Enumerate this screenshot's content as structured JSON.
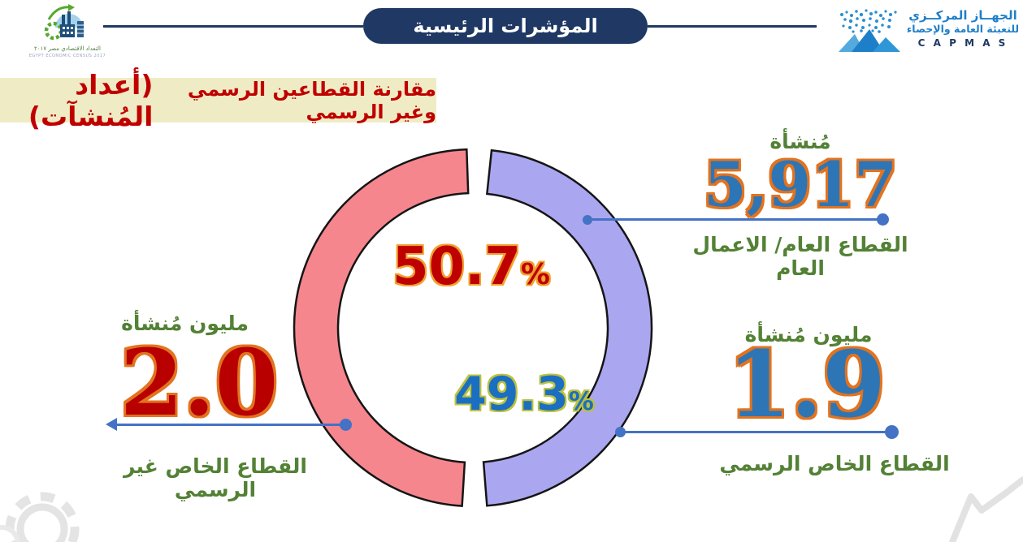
{
  "header": {
    "banner": {
      "title": "المؤشرات الرئيسية"
    },
    "capmas_logo": {
      "name_line1": "الجهــاز المركــزي",
      "name_line2": "للتعبئة العامة والإحصاء",
      "acronym": "C A P M A S"
    },
    "census_logo": {
      "caption_ar": "التعداد الاقتصادي مصر ٢٠١٧",
      "caption_en": "EGYPT ECONOMIC CENSUS 2017"
    }
  },
  "page_title": {
    "main": "مقارنة القطاعين الرسمي وغير الرسمي",
    "highlight": "(أعداد المُنشآت)"
  },
  "center": {
    "percent_symbol": "%"
  },
  "callouts": {
    "public": {
      "unit": "مُنشأة",
      "value": "5,917",
      "label": "القطاع العام/ الاعمال العام"
    },
    "formal": {
      "unit": "مليون مُنشأة",
      "value": "1.9",
      "label": "القطاع الخاص الرسمي"
    },
    "informal": {
      "unit": "مليون مُنشأة",
      "value": "2.0",
      "label": "القطاع الخاص غير الرسمي"
    }
  },
  "chart_data": {
    "type": "pie",
    "donut": true,
    "title": "مقارنة القطاعين الرسمي وغير الرسمي (أعداد المُنشآت)",
    "series": [
      {
        "name": "القطاع الخاص الرسمي",
        "pct": 49.3,
        "count_millions": 1.9,
        "color": "#aba6f0"
      },
      {
        "name": "القطاع الخاص غير الرسمي",
        "pct": 50.7,
        "count_millions": 2.0,
        "color": "#f6868e"
      }
    ],
    "annotation": {
      "name": "القطاع العام/ الاعمال العام",
      "count": 5917,
      "unit": "مُنشأة"
    },
    "rotation_deg": 2,
    "gap_deg": 8,
    "legend": "none",
    "value_labels": "inside-center"
  },
  "colors": {
    "navy": "#1f3864",
    "green_label": "#538135",
    "callout_line": "#4472c4",
    "value_red": "#bf0000",
    "value_blue": "#2e75b6",
    "outline_orange": "#e2731f",
    "title_background": "#efecc5",
    "title_red": "#c00000"
  }
}
